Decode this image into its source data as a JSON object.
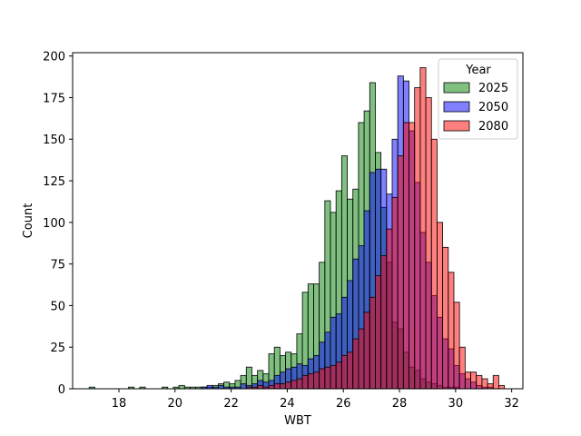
{
  "chart_data": {
    "type": "histogram",
    "xlabel": "WBT",
    "ylabel": "Count",
    "xlim": [
      16.35,
      32.4
    ],
    "ylim": [
      0,
      202
    ],
    "x_ticks": [
      18,
      20,
      22,
      24,
      26,
      28,
      30,
      32
    ],
    "y_ticks": [
      0,
      25,
      50,
      75,
      100,
      125,
      150,
      175,
      200
    ],
    "grid": false,
    "bin_start": 16.94,
    "bin_width": 0.2,
    "legend": {
      "title": "Year",
      "placement": "top-right"
    },
    "series": [
      {
        "name": "2025",
        "color": "#008000",
        "counts": [
          1,
          0,
          0,
          0,
          0,
          0,
          0,
          1,
          0,
          1,
          0,
          0,
          0,
          1,
          0,
          1,
          2,
          1,
          1,
          1,
          1,
          1,
          2,
          3,
          4,
          3,
          5,
          8,
          13,
          8,
          11,
          9,
          21,
          25,
          20,
          22,
          21,
          33,
          58,
          63,
          63,
          76,
          113,
          106,
          119,
          140,
          114,
          120,
          160,
          167,
          184,
          142,
          109,
          76,
          40,
          36,
          22,
          13,
          11,
          6,
          4,
          3,
          2,
          1,
          1,
          1,
          0,
          0,
          0,
          0,
          0,
          0,
          0,
          0
        ]
      },
      {
        "name": "2050",
        "color": "#0000ff",
        "counts": [
          0,
          0,
          0,
          0,
          0,
          0,
          0,
          0,
          0,
          0,
          0,
          0,
          0,
          0,
          0,
          0,
          0,
          0,
          0,
          0,
          1,
          2,
          1,
          2,
          1,
          1,
          1,
          3,
          2,
          3,
          5,
          4,
          5,
          8,
          10,
          12,
          13,
          15,
          14,
          18,
          20,
          28,
          34,
          43,
          45,
          55,
          65,
          78,
          86,
          107,
          130,
          132,
          132,
          117,
          150,
          188,
          185,
          155,
          124,
          94,
          76,
          56,
          43,
          30,
          24,
          14,
          9,
          6,
          4,
          2,
          1,
          1,
          0,
          0
        ]
      },
      {
        "name": "2080",
        "color": "#ff0000",
        "counts": [
          0,
          0,
          0,
          0,
          0,
          0,
          0,
          0,
          0,
          0,
          0,
          0,
          0,
          0,
          0,
          0,
          0,
          0,
          0,
          0,
          0,
          0,
          0,
          0,
          0,
          0,
          0,
          0,
          1,
          1,
          2,
          1,
          2,
          3,
          3,
          4,
          5,
          6,
          8,
          9,
          10,
          12,
          13,
          14,
          16,
          20,
          22,
          30,
          36,
          46,
          55,
          68,
          80,
          96,
          115,
          140,
          160,
          160,
          181,
          193,
          175,
          150,
          100,
          85,
          70,
          52,
          25,
          10,
          10,
          8,
          6,
          3,
          8,
          2
        ]
      }
    ]
  }
}
